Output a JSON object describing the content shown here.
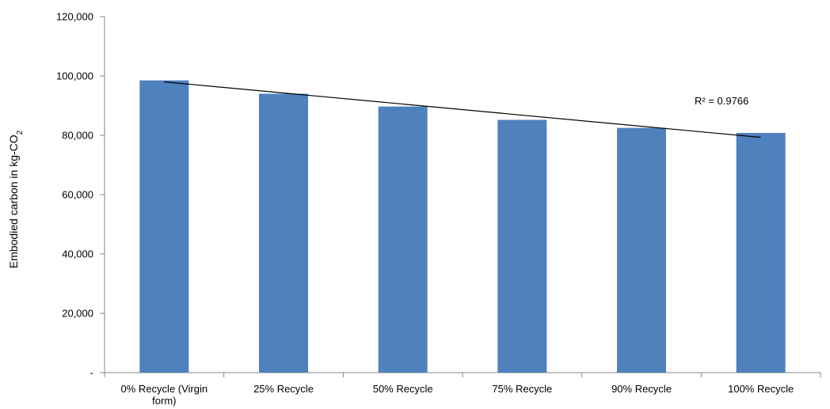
{
  "chart_data": {
    "type": "bar",
    "categories": [
      [
        "0% Recycle (Virgin",
        "form)"
      ],
      [
        "25% Recycle"
      ],
      [
        "50% Recycle"
      ],
      [
        "75% Recycle"
      ],
      [
        "90% Recycle"
      ],
      [
        "100% Recycle"
      ]
    ],
    "values": [
      98500,
      94000,
      89700,
      85200,
      82500,
      80800
    ],
    "title": "",
    "xlabel": "",
    "ylabel": {
      "main": "Embodied carbon in kg-CO",
      "subscript": "2"
    },
    "ylim": [
      0,
      120000
    ],
    "yticks": [
      0,
      20000,
      40000,
      60000,
      80000,
      100000,
      120000
    ],
    "ytick_labels": [
      "-",
      "20,000",
      "40,000",
      "60,000",
      "80,000",
      "100,000",
      "120,000"
    ],
    "grid": false,
    "bar_color": "#4f81bd",
    "trendline": {
      "type": "linear",
      "start_value": 98000,
      "end_value": 79300,
      "color": "#000000",
      "annotation": "R² = 0.9766"
    }
  }
}
